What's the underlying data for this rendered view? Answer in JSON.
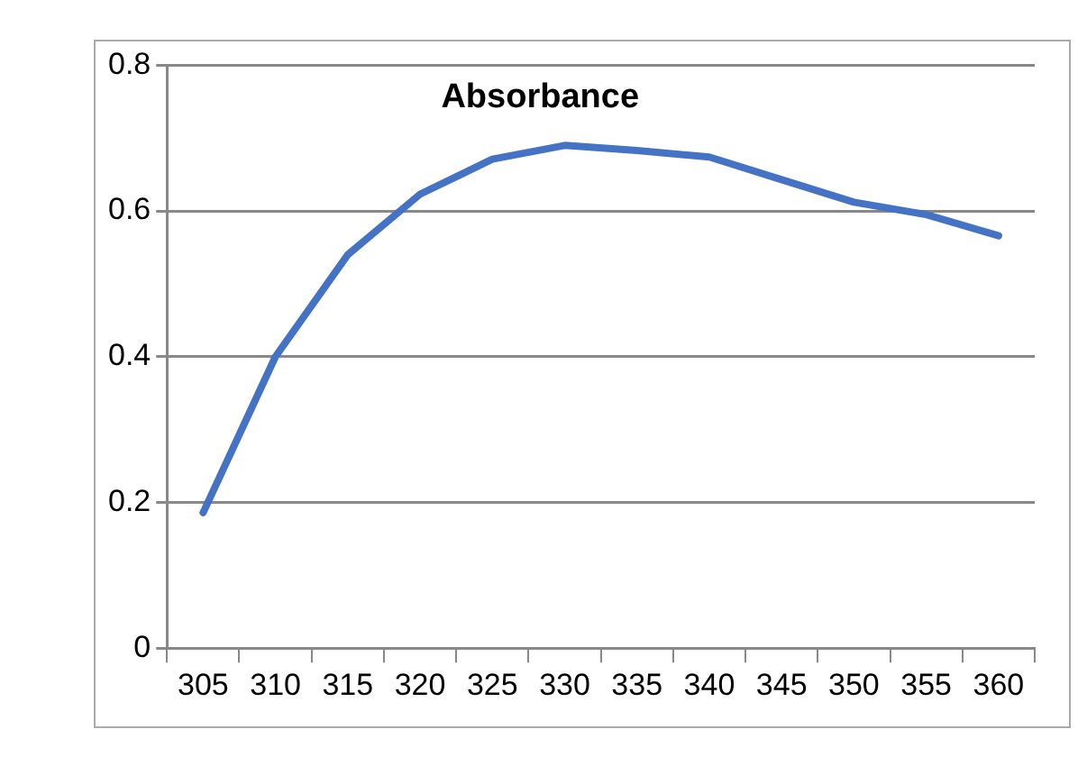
{
  "chart_data": {
    "type": "line",
    "title": "Absorbance",
    "categories": [
      "305",
      "310",
      "315",
      "320",
      "325",
      "330",
      "335",
      "340",
      "345",
      "350",
      "355",
      "360"
    ],
    "series": [
      {
        "color": "#4472c4",
        "values": [
          0.186,
          0.4,
          0.54,
          0.623,
          0.671,
          0.69,
          0.683,
          0.674,
          0.643,
          0.612,
          0.595,
          0.566
        ]
      }
    ],
    "ylim": [
      0,
      0.8
    ],
    "yticks": [
      {
        "value": 0,
        "label": "0"
      },
      0.2,
      0.4,
      0.6,
      0.8
    ],
    "grid": "y",
    "legend": false,
    "marker": "none",
    "line_style": "solid"
  }
}
